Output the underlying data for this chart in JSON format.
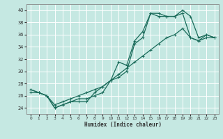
{
  "xlabel": "Humidex (Indice chaleur)",
  "ylabel": "",
  "xlim": [
    -0.5,
    23.5
  ],
  "ylim": [
    23,
    41
  ],
  "yticks": [
    24,
    26,
    28,
    30,
    32,
    34,
    36,
    38,
    40
  ],
  "xticks": [
    0,
    1,
    2,
    3,
    4,
    5,
    6,
    7,
    8,
    9,
    10,
    11,
    12,
    13,
    14,
    15,
    16,
    17,
    18,
    19,
    20,
    21,
    22,
    23
  ],
  "bg_color": "#c5e8e2",
  "grid_color": "#b0d8d0",
  "line_color": "#1a6b5a",
  "line1_x": [
    0,
    1,
    2,
    3,
    4,
    5,
    6,
    7,
    8,
    9,
    10,
    11,
    12,
    13,
    14,
    15,
    16,
    17,
    18,
    19,
    20,
    21,
    22,
    23
  ],
  "line1_y": [
    27,
    26.5,
    26,
    24,
    24.5,
    25,
    25.5,
    25.5,
    26,
    26.5,
    28.5,
    31.5,
    31,
    35,
    36.5,
    39.5,
    39.5,
    39,
    39,
    40,
    39,
    35.5,
    36,
    35.5
  ],
  "line2_x": [
    0,
    1,
    2,
    3,
    4,
    5,
    6,
    7,
    8,
    9,
    10,
    11,
    12,
    13,
    14,
    15,
    16,
    17,
    18,
    19,
    20,
    21,
    22,
    23
  ],
  "line2_y": [
    27,
    26.5,
    26,
    24,
    24.5,
    25,
    25,
    25,
    26.5,
    27.5,
    28.5,
    29,
    30,
    34.5,
    35.5,
    39.5,
    39,
    39,
    39,
    39.5,
    35.5,
    35,
    36,
    35.5
  ],
  "line3_x": [
    0,
    1,
    2,
    3,
    4,
    5,
    6,
    7,
    8,
    9,
    10,
    11,
    12,
    13,
    14,
    15,
    16,
    17,
    18,
    19,
    20,
    21,
    22,
    23
  ],
  "line3_y": [
    26.5,
    26.5,
    26,
    24.5,
    25,
    25.5,
    26,
    26.5,
    27,
    27.5,
    28.5,
    29.5,
    30.5,
    31.5,
    32.5,
    33.5,
    34.5,
    35.5,
    36,
    37,
    35.5,
    35,
    35.5,
    35.5
  ]
}
